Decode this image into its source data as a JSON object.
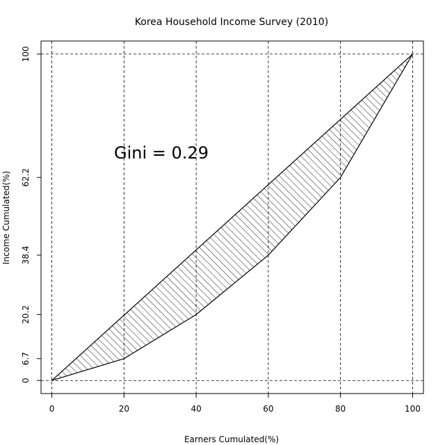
{
  "chart_data": {
    "type": "line",
    "title": "Korea Household Income Survey (2010)",
    "xlabel": "Earners Cumulated(%)",
    "ylabel": "Income Cumulated(%)",
    "annotation": "Gini = 0.29",
    "annotation_color": "#e41a1c",
    "xlim": [
      -3,
      103
    ],
    "ylim": [
      -4,
      104
    ],
    "x_ticks": [
      0,
      20,
      40,
      60,
      80,
      100
    ],
    "x_tick_labels": [
      "0",
      "20",
      "40",
      "60",
      "80",
      "100"
    ],
    "y_ticks": [
      0,
      6.7,
      20.2,
      38.4,
      62.2,
      100
    ],
    "y_tick_labels": [
      "0",
      "6.7",
      "20.2",
      "38.4",
      "62.2",
      "100"
    ],
    "grid": true,
    "series": [
      {
        "role": "equality-line",
        "x": [
          0,
          100
        ],
        "y": [
          0,
          100
        ]
      },
      {
        "role": "lorenz-curve",
        "x": [
          0,
          20,
          40,
          60,
          80,
          100
        ],
        "y": [
          0,
          6.7,
          20.2,
          38.4,
          62.2,
          100
        ]
      }
    ],
    "fill": "hatched"
  }
}
